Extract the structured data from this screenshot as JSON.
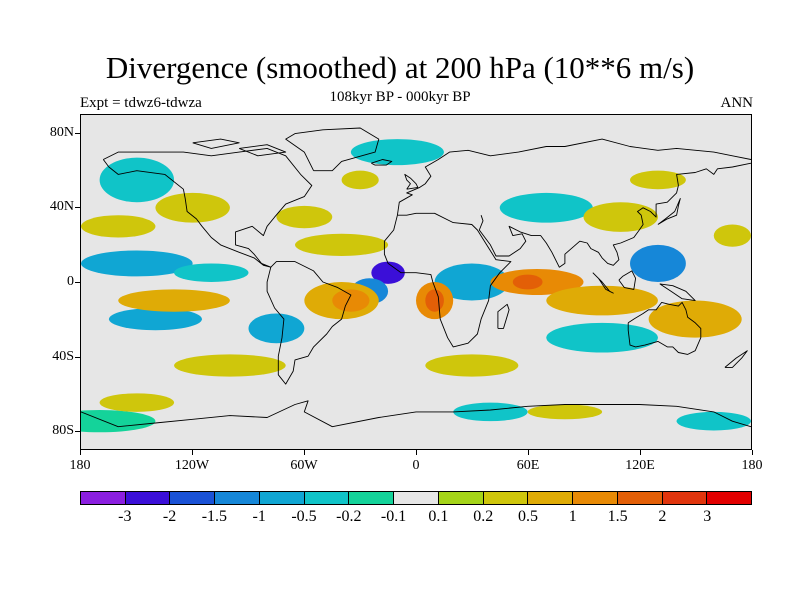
{
  "header": {
    "title": "Divergence (smoothed) at 200 hPa (10**6 m/s)",
    "subtitle": "108kyr BP - 000kyr BP",
    "experiment": "Expt = tdwz6-tdwza",
    "season": "ANN"
  },
  "map": {
    "projection": "cylindrical-equidistant",
    "lat_labels": [
      {
        "lat": 80,
        "label": "80N"
      },
      {
        "lat": 40,
        "label": "40N"
      },
      {
        "lat": 0,
        "label": "0"
      },
      {
        "lat": -40,
        "label": "40S"
      },
      {
        "lat": -80,
        "label": "80S"
      }
    ],
    "lon_labels": [
      {
        "lon": -180,
        "label": "180"
      },
      {
        "lon": -120,
        "label": "120W"
      },
      {
        "lon": -60,
        "label": "60W"
      },
      {
        "lon": 0,
        "label": "0"
      },
      {
        "lon": 60,
        "label": "60E"
      },
      {
        "lon": 120,
        "label": "120E"
      },
      {
        "lon": 180,
        "label": "180"
      }
    ],
    "fill_areas": [
      {
        "lon": -150,
        "lat": 10,
        "rx": 30,
        "ry": 7,
        "level": 4
      },
      {
        "lon": -140,
        "lat": -20,
        "rx": 25,
        "ry": 6,
        "level": 4
      },
      {
        "lon": -110,
        "lat": 5,
        "rx": 20,
        "ry": 5,
        "level": 5
      },
      {
        "lon": -15,
        "lat": 5,
        "rx": 9,
        "ry": 6,
        "level": 1
      },
      {
        "lon": -25,
        "lat": -5,
        "rx": 10,
        "ry": 7,
        "level": 3
      },
      {
        "lon": -150,
        "lat": 55,
        "rx": 20,
        "ry": 12,
        "level": 5
      },
      {
        "lon": -75,
        "lat": -25,
        "rx": 15,
        "ry": 8,
        "level": 4
      },
      {
        "lon": 30,
        "lat": 0,
        "rx": 20,
        "ry": 10,
        "level": 4
      },
      {
        "lon": 70,
        "lat": 40,
        "rx": 25,
        "ry": 8,
        "level": 5
      },
      {
        "lon": 100,
        "lat": -30,
        "rx": 30,
        "ry": 8,
        "level": 5
      },
      {
        "lon": 130,
        "lat": 10,
        "rx": 15,
        "ry": 10,
        "level": 3
      },
      {
        "lon": -170,
        "lat": -75,
        "rx": 30,
        "ry": 6,
        "level": 6
      },
      {
        "lon": 40,
        "lat": -70,
        "rx": 20,
        "ry": 5,
        "level": 5
      },
      {
        "lon": 160,
        "lat": -75,
        "rx": 20,
        "ry": 5,
        "level": 5
      },
      {
        "lon": -10,
        "lat": 70,
        "rx": 25,
        "ry": 7,
        "level": 5
      },
      {
        "lon": -120,
        "lat": 40,
        "rx": 20,
        "ry": 8,
        "level": 9
      },
      {
        "lon": -160,
        "lat": 30,
        "rx": 20,
        "ry": 6,
        "level": 9
      },
      {
        "lon": -40,
        "lat": 20,
        "rx": 25,
        "ry": 6,
        "level": 9
      },
      {
        "lon": -40,
        "lat": -10,
        "rx": 20,
        "ry": 10,
        "level": 10
      },
      {
        "lon": -35,
        "lat": -10,
        "rx": 10,
        "ry": 6,
        "level": 11
      },
      {
        "lon": -130,
        "lat": -10,
        "rx": 30,
        "ry": 6,
        "level": 10
      },
      {
        "lon": -60,
        "lat": 35,
        "rx": 15,
        "ry": 6,
        "level": 9
      },
      {
        "lon": 10,
        "lat": -10,
        "rx": 10,
        "ry": 10,
        "level": 11
      },
      {
        "lon": 10,
        "lat": -10,
        "rx": 5,
        "ry": 6,
        "level": 12
      },
      {
        "lon": 65,
        "lat": 0,
        "rx": 25,
        "ry": 7,
        "level": 11
      },
      {
        "lon": 60,
        "lat": 0,
        "rx": 8,
        "ry": 4,
        "level": 12
      },
      {
        "lon": 100,
        "lat": -10,
        "rx": 30,
        "ry": 8,
        "level": 10
      },
      {
        "lon": 150,
        "lat": -20,
        "rx": 25,
        "ry": 10,
        "level": 10
      },
      {
        "lon": 110,
        "lat": 35,
        "rx": 20,
        "ry": 8,
        "level": 9
      },
      {
        "lon": 170,
        "lat": 25,
        "rx": 10,
        "ry": 6,
        "level": 9
      },
      {
        "lon": 30,
        "lat": -45,
        "rx": 25,
        "ry": 6,
        "level": 9
      },
      {
        "lon": -100,
        "lat": -45,
        "rx": 30,
        "ry": 6,
        "level": 9
      },
      {
        "lon": -150,
        "lat": -65,
        "rx": 20,
        "ry": 5,
        "level": 9
      },
      {
        "lon": 80,
        "lat": -70,
        "rx": 20,
        "ry": 4,
        "level": 9
      },
      {
        "lon": -30,
        "lat": 55,
        "rx": 10,
        "ry": 5,
        "level": 9
      },
      {
        "lon": 130,
        "lat": 55,
        "rx": 15,
        "ry": 5,
        "level": 9
      }
    ],
    "coastlines": [
      [
        [
          -168,
          66
        ],
        [
          -160,
          70
        ],
        [
          -140,
          70
        ],
        [
          -125,
          70
        ],
        [
          -110,
          68
        ],
        [
          -95,
          70
        ],
        [
          -80,
          72
        ],
        [
          -70,
          68
        ],
        [
          -62,
          58
        ],
        [
          -56,
          52
        ],
        [
          -60,
          46
        ],
        [
          -70,
          42
        ],
        [
          -76,
          35
        ],
        [
          -80,
          30
        ],
        [
          -82,
          25
        ],
        [
          -88,
          30
        ],
        [
          -97,
          27
        ],
        [
          -97,
          20
        ],
        [
          -90,
          18
        ],
        [
          -87,
          15
        ],
        [
          -83,
          10
        ],
        [
          -78,
          8
        ],
        [
          -82,
          9
        ],
        [
          -87,
          13
        ],
        [
          -95,
          16
        ],
        [
          -105,
          20
        ],
        [
          -110,
          24
        ],
        [
          -115,
          30
        ],
        [
          -118,
          34
        ],
        [
          -123,
          38
        ],
        [
          -124,
          45
        ],
        [
          -125,
          50
        ],
        [
          -135,
          58
        ],
        [
          -150,
          60
        ],
        [
          -160,
          58
        ],
        [
          -165,
          62
        ],
        [
          -168,
          66
        ]
      ],
      [
        [
          -78,
          8
        ],
        [
          -75,
          11
        ],
        [
          -65,
          11
        ],
        [
          -55,
          6
        ],
        [
          -50,
          0
        ],
        [
          -42,
          -3
        ],
        [
          -35,
          -7
        ],
        [
          -38,
          -13
        ],
        [
          -40,
          -20
        ],
        [
          -45,
          -24
        ],
        [
          -48,
          -28
        ],
        [
          -55,
          -35
        ],
        [
          -58,
          -40
        ],
        [
          -65,
          -42
        ],
        [
          -66,
          -48
        ],
        [
          -70,
          -55
        ],
        [
          -74,
          -50
        ],
        [
          -74,
          -40
        ],
        [
          -72,
          -30
        ],
        [
          -71,
          -20
        ],
        [
          -76,
          -14
        ],
        [
          -80,
          -5
        ],
        [
          -80,
          0
        ],
        [
          -78,
          8
        ]
      ],
      [
        [
          -10,
          36
        ],
        [
          -5,
          36
        ],
        [
          0,
          37
        ],
        [
          10,
          37
        ],
        [
          20,
          32
        ],
        [
          30,
          31
        ],
        [
          33,
          28
        ],
        [
          38,
          20
        ],
        [
          43,
          12
        ],
        [
          51,
          11
        ],
        [
          45,
          5
        ],
        [
          40,
          -2
        ],
        [
          39,
          -10
        ],
        [
          35,
          -20
        ],
        [
          33,
          -28
        ],
        [
          28,
          -33
        ],
        [
          20,
          -35
        ],
        [
          17,
          -30
        ],
        [
          13,
          -20
        ],
        [
          12,
          -8
        ],
        [
          9,
          0
        ],
        [
          8,
          4
        ],
        [
          0,
          5
        ],
        [
          -8,
          5
        ],
        [
          -15,
          10
        ],
        [
          -17,
          15
        ],
        [
          -17,
          22
        ],
        [
          -12,
          28
        ],
        [
          -10,
          36
        ]
      ],
      [
        [
          -10,
          36
        ],
        [
          -9,
          43
        ],
        [
          -2,
          47
        ],
        [
          -5,
          48
        ],
        [
          2,
          51
        ],
        [
          5,
          53
        ],
        [
          8,
          57
        ],
        [
          5,
          62
        ],
        [
          12,
          66
        ],
        [
          18,
          70
        ],
        [
          28,
          71
        ],
        [
          40,
          68
        ],
        [
          55,
          70
        ],
        [
          70,
          73
        ],
        [
          80,
          73
        ],
        [
          100,
          77
        ],
        [
          115,
          73
        ],
        [
          130,
          71
        ],
        [
          140,
          72
        ],
        [
          160,
          70
        ],
        [
          170,
          68
        ],
        [
          180,
          66
        ]
      ],
      [
        [
          35,
          36
        ],
        [
          36,
          33
        ],
        [
          34,
          28
        ],
        [
          40,
          20
        ],
        [
          43,
          14
        ],
        [
          50,
          14
        ],
        [
          56,
          18
        ],
        [
          59,
          22
        ],
        [
          57,
          26
        ],
        [
          52,
          25
        ],
        [
          50,
          30
        ],
        [
          56,
          27
        ],
        [
          62,
          25
        ],
        [
          67,
          25
        ],
        [
          70,
          21
        ],
        [
          73,
          16
        ],
        [
          77,
          8
        ],
        [
          80,
          10
        ],
        [
          80,
          15
        ],
        [
          88,
          22
        ],
        [
          92,
          21
        ],
        [
          94,
          18
        ],
        [
          98,
          16
        ],
        [
          100,
          13
        ],
        [
          103,
          10
        ],
        [
          106,
          9
        ],
        [
          109,
          12
        ],
        [
          108,
          16
        ],
        [
          106,
          20
        ],
        [
          110,
          21
        ],
        [
          117,
          24
        ],
        [
          120,
          28
        ],
        [
          122,
          31
        ],
        [
          121,
          36
        ],
        [
          119,
          38
        ],
        [
          122,
          40
        ],
        [
          126,
          38
        ],
        [
          129,
          35
        ],
        [
          129,
          42
        ],
        [
          135,
          43
        ],
        [
          140,
          48
        ],
        [
          141,
          52
        ],
        [
          140,
          58
        ],
        [
          150,
          59
        ],
        [
          156,
          61
        ],
        [
          160,
          58
        ],
        [
          162,
          61
        ],
        [
          170,
          62
        ],
        [
          180,
          64
        ]
      ],
      [
        [
          114,
          -22
        ],
        [
          114,
          -26
        ],
        [
          115,
          -34
        ],
        [
          118,
          -35
        ],
        [
          123,
          -34
        ],
        [
          130,
          -32
        ],
        [
          135,
          -35
        ],
        [
          138,
          -35
        ],
        [
          141,
          -38
        ],
        [
          146,
          -39
        ],
        [
          150,
          -37
        ],
        [
          153,
          -30
        ],
        [
          153,
          -25
        ],
        [
          150,
          -22
        ],
        [
          146,
          -19
        ],
        [
          145,
          -15
        ],
        [
          143,
          -11
        ],
        [
          141,
          -13
        ],
        [
          136,
          -12
        ],
        [
          132,
          -11
        ],
        [
          129,
          -15
        ],
        [
          125,
          -15
        ],
        [
          122,
          -17
        ],
        [
          117,
          -20
        ],
        [
          114,
          -22
        ]
      ],
      [
        [
          -180,
          -70
        ],
        [
          -160,
          -78
        ],
        [
          -140,
          -76
        ],
        [
          -120,
          -74
        ],
        [
          -100,
          -72
        ],
        [
          -80,
          -73
        ],
        [
          -65,
          -66
        ],
        [
          -58,
          -64
        ],
        [
          -60,
          -70
        ],
        [
          -45,
          -78
        ],
        [
          -20,
          -73
        ],
        [
          0,
          -70
        ],
        [
          20,
          -70
        ],
        [
          40,
          -69
        ],
        [
          60,
          -67
        ],
        [
          80,
          -66
        ],
        [
          100,
          -66
        ],
        [
          120,
          -66
        ],
        [
          140,
          -67
        ],
        [
          160,
          -70
        ],
        [
          170,
          -75
        ],
        [
          180,
          -78
        ]
      ],
      [
        [
          -55,
          60
        ],
        [
          -45,
          60
        ],
        [
          -40,
          65
        ],
        [
          -22,
          70
        ],
        [
          -20,
          77
        ],
        [
          -30,
          83
        ],
        [
          -50,
          82
        ],
        [
          -65,
          80
        ],
        [
          -70,
          77
        ],
        [
          -60,
          70
        ],
        [
          -55,
          60
        ]
      ],
      [
        [
          -5,
          50
        ],
        [
          1,
          51
        ],
        [
          0,
          53
        ],
        [
          -3,
          56
        ],
        [
          -6,
          58
        ],
        [
          -5,
          55
        ],
        [
          -3,
          53
        ],
        [
          -5,
          50
        ]
      ],
      [
        [
          -24,
          64
        ],
        [
          -18,
          66
        ],
        [
          -13,
          65
        ],
        [
          -16,
          63
        ],
        [
          -22,
          63
        ],
        [
          -24,
          64
        ]
      ],
      [
        [
          44,
          -25
        ],
        [
          47,
          -25
        ],
        [
          50,
          -15
        ],
        [
          49,
          -12
        ],
        [
          44,
          -16
        ],
        [
          44,
          -25
        ]
      ],
      [
        [
          130,
          31
        ],
        [
          135,
          34
        ],
        [
          140,
          36
        ],
        [
          141,
          41
        ],
        [
          142,
          45
        ],
        [
          139,
          38
        ],
        [
          134,
          34
        ],
        [
          130,
          31
        ]
      ],
      [
        [
          95,
          5
        ],
        [
          100,
          0
        ],
        [
          104,
          -5
        ],
        [
          106,
          -6
        ],
        [
          102,
          -4
        ],
        [
          98,
          2
        ],
        [
          95,
          5
        ]
      ],
      [
        [
          109,
          1
        ],
        [
          112,
          -3
        ],
        [
          117,
          -4
        ],
        [
          118,
          2
        ],
        [
          116,
          6
        ],
        [
          111,
          3
        ],
        [
          109,
          1
        ]
      ],
      [
        [
          131,
          -1
        ],
        [
          138,
          -2
        ],
        [
          145,
          -5
        ],
        [
          150,
          -10
        ],
        [
          143,
          -9
        ],
        [
          137,
          -5
        ],
        [
          131,
          -1
        ]
      ],
      [
        [
          166,
          -46
        ],
        [
          172,
          -41
        ],
        [
          178,
          -37
        ],
        [
          175,
          -41
        ],
        [
          170,
          -46
        ],
        [
          166,
          -46
        ]
      ],
      [
        [
          -95,
          72
        ],
        [
          -80,
          74
        ],
        [
          -70,
          70
        ],
        [
          -85,
          68
        ],
        [
          -95,
          72
        ]
      ],
      [
        [
          -120,
          75
        ],
        [
          -105,
          77
        ],
        [
          -95,
          75
        ],
        [
          -110,
          72
        ],
        [
          -120,
          75
        ]
      ]
    ]
  },
  "colorbar": {
    "colors": [
      "#8b1fe0",
      "#3b0fd8",
      "#1a52d6",
      "#1687d8",
      "#10a6d3",
      "#10c4c8",
      "#14d39a",
      "#e6e6e6",
      "#a5d419",
      "#cfc60c",
      "#dfab06",
      "#e88a05",
      "#e35f07",
      "#e1350d",
      "#e30000"
    ],
    "labels": [
      "-3",
      "-2",
      "-1.5",
      "-1",
      "-0.5",
      "-0.2",
      "-0.1",
      "0.1",
      "0.2",
      "0.5",
      "1",
      "1.5",
      "2",
      "3"
    ]
  }
}
